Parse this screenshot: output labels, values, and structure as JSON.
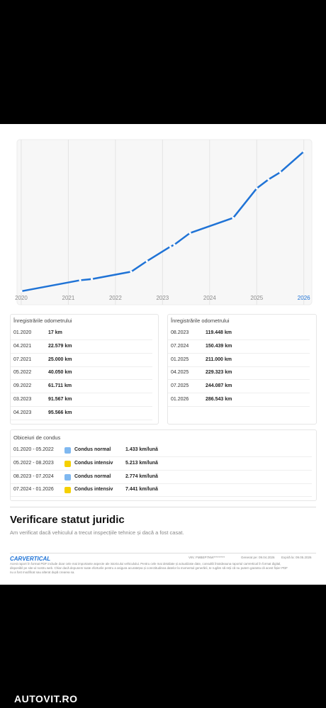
{
  "chart_data": {
    "type": "line",
    "x": [
      "01.2020",
      "04.2021",
      "07.2021",
      "05.2022",
      "09.2022",
      "03.2023",
      "04.2023",
      "08.2023",
      "07.2024",
      "01.2025",
      "04.2025",
      "07.2025",
      "01.2026"
    ],
    "values": [
      17,
      22579,
      25000,
      40050,
      61711,
      91567,
      95566,
      119448,
      150439,
      211000,
      229323,
      244087,
      286543
    ],
    "color": "#1f73d6",
    "xlim": [
      2019.91,
      2026.17
    ],
    "ylim": [
      -1500,
      311000
    ],
    "xticks": [
      2020,
      2021,
      2022,
      2023,
      2024,
      2025,
      2026
    ],
    "grid": true
  },
  "odometer": {
    "title": "Înregistrările odometrului",
    "left": [
      [
        "01.2020",
        "17 km"
      ],
      [
        "04.2021",
        "22.579 km"
      ],
      [
        "07.2021",
        "25.000 km"
      ],
      [
        "05.2022",
        "40.050 km"
      ],
      [
        "09.2022",
        "61.711 km"
      ],
      [
        "03.2023",
        "91.567 km"
      ],
      [
        "04.2023",
        "95.566 km"
      ]
    ],
    "right": [
      [
        "08.2023",
        "119.448 km"
      ],
      [
        "07.2024",
        "150.439 km"
      ],
      [
        "01.2025",
        "211.000 km"
      ],
      [
        "04.2025",
        "229.323 km"
      ],
      [
        "07.2025",
        "244.087 km"
      ],
      [
        "01.2026",
        "286.543 km"
      ]
    ]
  },
  "habits": {
    "title": "Obiceiuri de condus",
    "rows": [
      {
        "period": "01.2020 - 05.2022",
        "color": "#7fb8f0",
        "label": "Condus normal",
        "rate": "1.433 km/lună"
      },
      {
        "period": "05.2022 - 08.2023",
        "color": "#f5d000",
        "label": "Condus intensiv",
        "rate": "5.213 km/lună"
      },
      {
        "period": "08.2023 - 07.2024",
        "color": "#7fb8f0",
        "label": "Condus normal",
        "rate": "2.774 km/lună"
      },
      {
        "period": "07.2024 - 01.2026",
        "color": "#f5d000",
        "label": "Condus intensiv",
        "rate": "7.441 km/lună"
      }
    ]
  },
  "legal": {
    "title": "Verificare statut juridic",
    "text": "Am verificat dacă vehiculul a trecut inspecțiile tehnice și dacă a fost casat."
  },
  "footer": {
    "logo": "CARVERTICAL",
    "vin": "VIN: FMBEP7NW*********",
    "generated": "Generat pe: 09.04.2026",
    "expires": "Expiră la: 09.05.2026",
    "disclaimer": [
      "Acest raport în format PDF include doar cele mai importante aspecte ale istoricului vehiculului. Pentru cele mai detaliate și actualizate date, consultă întotdeauna raportul carVertical în format digital,",
      "disponibil pe site-ul nostru web. Chiar dacă depunem toate eforturile pentru a asigura acuratețea și corectitudinea datelor la momentul generării, te rugăm să reții că nu putem garanta că acest fișier PDF",
      "nu a fost modificat sau alterat după crearea sa."
    ]
  },
  "brand": "AUTOVIT.RO"
}
